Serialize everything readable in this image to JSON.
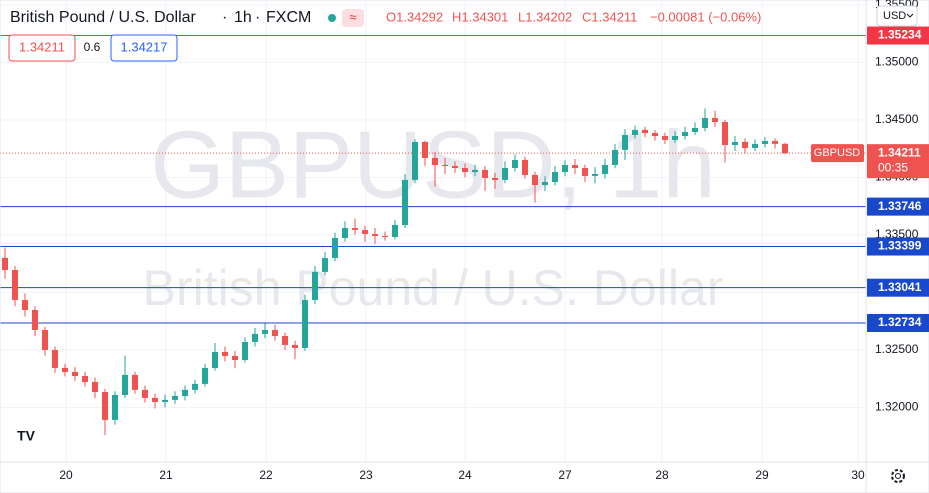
{
  "header": {
    "symbol_name": "British Pound / U.S. Dollar",
    "interval": "1h",
    "exchange": "FXCM",
    "ohlc": [
      "O1.34292",
      "H1.34301",
      "L1.34202",
      "C1.34211",
      "−0.00081 (−0.06%)"
    ],
    "bid": "1.34211",
    "spread": "0.6",
    "ask": "1.34217",
    "currency": "USD"
  },
  "chart_data": {
    "type": "candlestick",
    "watermark_symbol": "GBPUSD, 1h",
    "watermark_name": "British Pound / U.S. Dollar",
    "symbol_tag": "GBPUSD",
    "countdown": "00:35",
    "last_price": {
      "value": 1.34211,
      "label": "1.34211"
    },
    "up_color": "#26a69a",
    "down_color": "#ef5350",
    "open": [
      1.333,
      1.33195,
      1.32934,
      1.32847,
      1.32673,
      1.32499,
      1.32343,
      1.32308,
      1.32273,
      1.32221,
      1.32134,
      1.31891,
      1.32108,
      1.32282,
      1.32152,
      1.32082,
      1.32047,
      1.32065,
      1.32099,
      1.32152,
      1.32204,
      1.32343,
      1.32482,
      1.32447,
      1.32412,
      1.32569,
      1.32639,
      1.32673,
      1.32621,
      1.32543,
      1.32517,
      1.32934,
      1.33178,
      1.33299,
      1.33473,
      1.3356,
      1.33543,
      1.33508,
      1.33491,
      1.33482,
      1.33586,
      1.33978,
      1.34308,
      1.34169,
      1.34108,
      1.34099,
      1.34082,
      1.34047,
      1.34065,
      1.33995,
      1.33978,
      1.34082,
      1.34152,
      1.34021,
      1.33934,
      1.3396,
      1.34047,
      1.34108,
      1.34082,
      1.34013,
      1.3403,
      1.34108,
      1.34239,
      1.34369,
      1.34413,
      1.34386,
      1.3436,
      1.34326,
      1.3436,
      1.34395,
      1.3443,
      1.34517,
      1.34482,
      1.34282,
      1.34308,
      1.34256,
      1.34291,
      1.34317,
      1.34292
    ],
    "high": [
      1.3339,
      1.3323,
      1.3299,
      1.3288,
      1.327,
      1.3253,
      1.3238,
      1.3235,
      1.3231,
      1.3226,
      1.3216,
      1.3214,
      1.3245,
      1.3231,
      1.3219,
      1.3212,
      1.3211,
      1.3214,
      1.3219,
      1.3224,
      1.3238,
      1.3256,
      1.3253,
      1.3249,
      1.3261,
      1.3269,
      1.3273,
      1.3272,
      1.3265,
      1.3258,
      1.3298,
      1.3323,
      1.3335,
      1.3352,
      1.3362,
      1.3364,
      1.3358,
      1.3356,
      1.3353,
      1.3363,
      1.3403,
      1.3433,
      1.3432,
      1.3422,
      1.3417,
      1.3414,
      1.3412,
      1.3411,
      1.341,
      1.3404,
      1.3414,
      1.342,
      1.3418,
      1.3405,
      1.3401,
      1.341,
      1.3415,
      1.3416,
      1.3411,
      1.3409,
      1.3416,
      1.3429,
      1.3442,
      1.3445,
      1.3444,
      1.3441,
      1.3439,
      1.344,
      1.3444,
      1.3448,
      1.346,
      1.3458,
      1.345,
      1.3436,
      1.3434,
      1.3433,
      1.3435,
      1.3434,
      1.34301
    ],
    "low": [
      1.3312,
      1.3288,
      1.3279,
      1.3262,
      1.3245,
      1.323,
      1.3227,
      1.3223,
      1.3218,
      1.3208,
      1.3176,
      1.3185,
      1.3208,
      1.3212,
      1.3204,
      1.3199,
      1.32,
      1.3203,
      1.3206,
      1.3212,
      1.3218,
      1.3232,
      1.324,
      1.3234,
      1.3239,
      1.3253,
      1.326,
      1.3258,
      1.325,
      1.3242,
      1.3249,
      1.329,
      1.3315,
      1.3327,
      1.3344,
      1.335,
      1.3344,
      1.3342,
      1.3345,
      1.3346,
      1.3356,
      1.3395,
      1.341,
      1.3392,
      1.3403,
      1.3404,
      1.34,
      1.3401,
      1.3388,
      1.339,
      1.3395,
      1.3405,
      1.3399,
      1.3378,
      1.3388,
      1.3393,
      1.3401,
      1.3403,
      1.3396,
      1.3395,
      1.3399,
      1.3408,
      1.3415,
      1.3434,
      1.3435,
      1.3432,
      1.3429,
      1.343,
      1.3433,
      1.3437,
      1.344,
      1.3444,
      1.3413,
      1.3423,
      1.3421,
      1.3423,
      1.3426,
      1.3425,
      1.34202
    ],
    "close": [
      1.33195,
      1.32934,
      1.32847,
      1.32673,
      1.32499,
      1.32343,
      1.32308,
      1.32273,
      1.32221,
      1.32134,
      1.31891,
      1.32108,
      1.32282,
      1.32152,
      1.32082,
      1.32047,
      1.32065,
      1.32099,
      1.32152,
      1.32204,
      1.32343,
      1.32482,
      1.32447,
      1.32412,
      1.32569,
      1.32639,
      1.32673,
      1.32621,
      1.32543,
      1.32517,
      1.32934,
      1.33178,
      1.33299,
      1.33473,
      1.3356,
      1.33543,
      1.33508,
      1.33491,
      1.33482,
      1.33586,
      1.33978,
      1.34308,
      1.34169,
      1.34108,
      1.34099,
      1.34082,
      1.34047,
      1.34065,
      1.33995,
      1.33978,
      1.34082,
      1.34152,
      1.34021,
      1.33934,
      1.3396,
      1.34047,
      1.34108,
      1.34082,
      1.34013,
      1.3403,
      1.34108,
      1.34239,
      1.34369,
      1.34413,
      1.34386,
      1.3436,
      1.34326,
      1.3436,
      1.34395,
      1.3443,
      1.34517,
      1.34482,
      1.34282,
      1.34308,
      1.34256,
      1.34291,
      1.34317,
      1.34292,
      1.34211
    ],
    "xlim": [
      -0.5,
      86.1
    ],
    "xticks": [
      {
        "value": 6.1,
        "label": "20"
      },
      {
        "value": 16.1,
        "label": "21"
      },
      {
        "value": 26.1,
        "label": "22"
      },
      {
        "value": 36.1,
        "label": "23"
      },
      {
        "value": 46,
        "label": "24"
      },
      {
        "value": 56,
        "label": "27"
      },
      {
        "value": 65.7,
        "label": "28"
      },
      {
        "value": 75.7,
        "label": "29"
      },
      {
        "value": 85.3,
        "label": "30"
      }
    ],
    "ylim": [
      1.31525,
      1.35543
    ],
    "yticks": [
      {
        "value": 1.32,
        "label": "1.32000"
      },
      {
        "value": 1.325,
        "label": "1.32500"
      },
      {
        "value": 1.33,
        "label": "1.33000"
      },
      {
        "value": 1.335,
        "label": "1.33500"
      },
      {
        "value": 1.34,
        "label": "1.34000"
      },
      {
        "value": 1.345,
        "label": "1.34500"
      },
      {
        "value": 1.35,
        "label": "1.35000"
      },
      {
        "value": 1.355,
        "label": "1.35500"
      }
    ],
    "grid": true,
    "hlines": [
      {
        "value": 1.35234,
        "label": "1.35234",
        "color": "#f23645"
      },
      {
        "value": 1.33746,
        "label": "1.33746",
        "color": "#1848cc"
      },
      {
        "value": 1.33399,
        "label": "1.33399",
        "color": "#1848cc"
      },
      {
        "value": 1.33041,
        "label": "1.33041",
        "color": "#1848cc"
      },
      {
        "value": 1.32734,
        "label": "1.32734",
        "color": "#1848cc"
      }
    ]
  }
}
